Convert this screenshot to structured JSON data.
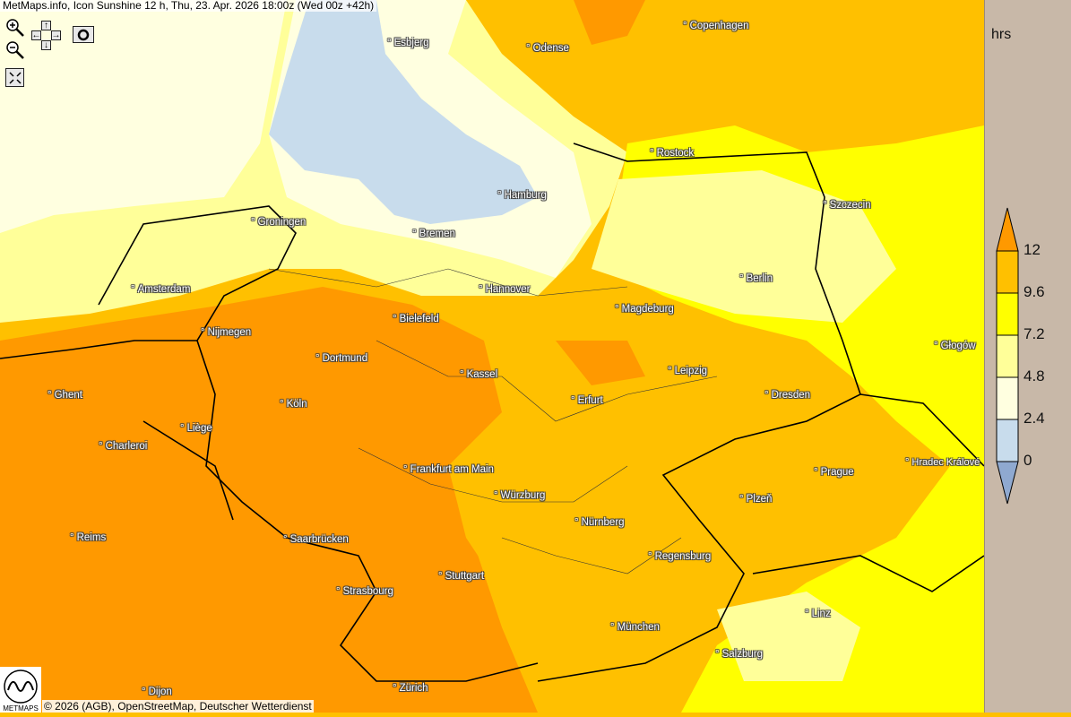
{
  "header": {
    "title": "MetMaps.info, Icon Sunshine 12 h, Thu, 23. Apr. 2026 18:00z (Wed 00z +42h)"
  },
  "controls": {
    "zoom_in_icon": "zoom-in-magnifier",
    "zoom_out_icon": "zoom-out-magnifier",
    "pan": {
      "up": "↑",
      "down": "↓",
      "left": "←",
      "right": "→"
    },
    "camera_icon": "camera",
    "fullscreen_icon": "expand-arrows"
  },
  "cities": [
    "Esbjerg",
    "Odense",
    "Copenhagen",
    "Rostock",
    "Hamburg",
    "Szczecin",
    "Groningen",
    "Bremen",
    "Amsterdam",
    "Hannover",
    "Berlin",
    "Magdeburg",
    "Bielefeld",
    "Nijmegen",
    "Głogów",
    "Dortmund",
    "Kassel",
    "Leipzig",
    "Ghent",
    "Köln",
    "Erfurt",
    "Dresden",
    "Liège",
    "Charleroi",
    "Frankfurt am Main",
    "Prague",
    "Hradec Králové",
    "Würzburg",
    "Plzeň",
    "Nürnberg",
    "Reims",
    "Saarbrücken",
    "Regensburg",
    "Stuttgart",
    "Strasbourg",
    "Linz",
    "München",
    "Salzburg",
    "Dijon",
    "Zürich"
  ],
  "legend": {
    "units": "hrs",
    "labels": [
      "12",
      "9.6",
      "7.2",
      "4.8",
      "2.4",
      "0"
    ],
    "colors": {
      "above_12": "#ff9900",
      "9.6_12": "#ffc000",
      "7.2_9.6": "#ffff00",
      "4.8_7.2": "#ffff99",
      "2.4_4.8": "#ffffe0",
      "0_2.4": "#c8dcec",
      "below_0": "#8fa9d0"
    }
  },
  "footer": {
    "copyright": "© 2026 (AGB), OpenStreetMap, Deutscher Wetterdienst",
    "logo_text": "METMAPS"
  }
}
